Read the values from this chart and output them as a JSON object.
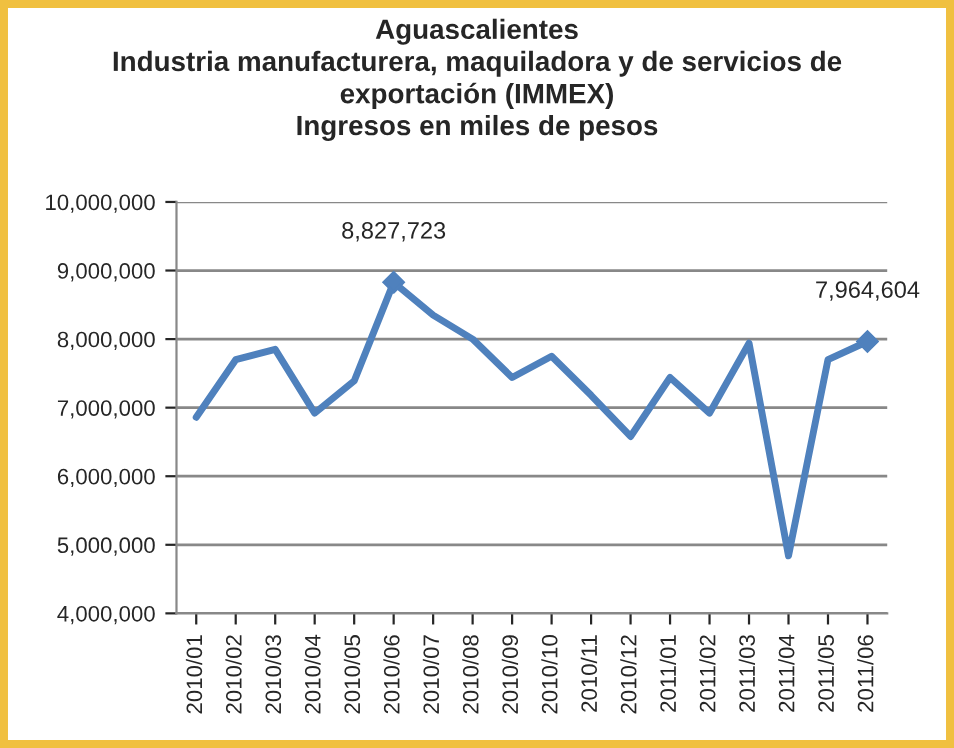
{
  "chart_data": {
    "type": "line",
    "title": "Aguascalientes\nIndustria manufacturera, maquiladora y de servicios de\nexportación (IMMEX)\nIngresos en miles de pesos",
    "categories": [
      "2010/01",
      "2010/02",
      "2010/03",
      "2010/04",
      "2010/05",
      "2010/06",
      "2010/07",
      "2010/08",
      "2010/09",
      "2010/10",
      "2010/11",
      "2010/12",
      "2011/01",
      "2011/02",
      "2011/03",
      "2011/04",
      "2011/05",
      "2011/06"
    ],
    "series": [
      {
        "color": "#4f81bd",
        "values": [
          6860000,
          7700000,
          7850000,
          6920000,
          7390000,
          8827723,
          8350000,
          8000000,
          7440000,
          7750000,
          7180000,
          6580000,
          7440000,
          6920000,
          7940000,
          4840000,
          7700000,
          7964604
        ],
        "value_labels": [
          null,
          null,
          null,
          null,
          null,
          "8,827,723",
          null,
          null,
          null,
          null,
          null,
          null,
          null,
          null,
          null,
          null,
          null,
          "7,964,604"
        ]
      }
    ],
    "ylim": [
      4000000,
      10000000
    ],
    "yticks": [
      {
        "value": 4000000,
        "label": "4,000,000"
      },
      {
        "value": 5000000,
        "label": "5,000,000"
      },
      {
        "value": 6000000,
        "label": "6,000,000"
      },
      {
        "value": 7000000,
        "label": "7,000,000"
      },
      {
        "value": 8000000,
        "label": "8,000,000"
      },
      {
        "value": 9000000,
        "label": "9,000,000"
      },
      {
        "value": 10000000,
        "label": "10,000,000"
      }
    ],
    "grid": "y",
    "legend": false
  }
}
